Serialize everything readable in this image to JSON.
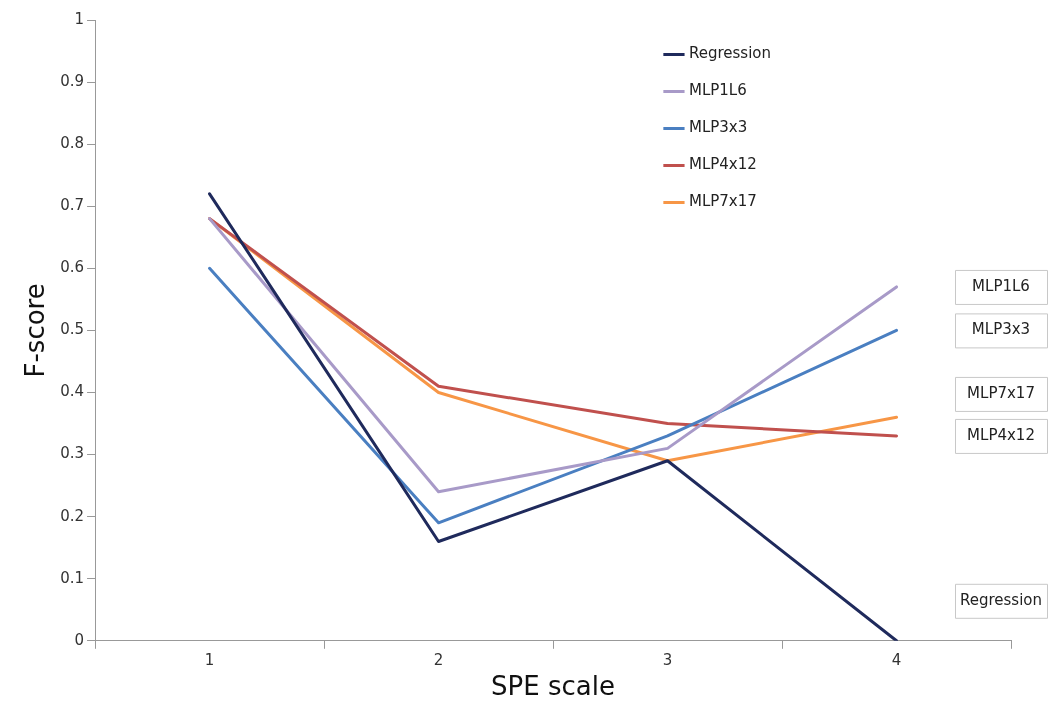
{
  "chart_data": {
    "type": "line",
    "xlabel": "SPE scale",
    "ylabel": "F-score",
    "categories": [
      "1",
      "2",
      "3",
      "4"
    ],
    "series": [
      {
        "name": "Regression",
        "color": "#1f2a5c",
        "values": [
          0.72,
          0.16,
          0.29,
          0
        ]
      },
      {
        "name": "MLP1L6",
        "color": "#a89ac8",
        "values": [
          0.68,
          0.24,
          0.31,
          0.57
        ]
      },
      {
        "name": "MLP3x3",
        "color": "#4a7fc1",
        "values": [
          0.6,
          0.19,
          0.33,
          0.5
        ]
      },
      {
        "name": "MLP4x12",
        "color": "#c0504d",
        "values": [
          0.68,
          0.41,
          0.35,
          0.33
        ]
      },
      {
        "name": "MLP7x17",
        "color": "#f79646",
        "values": [
          0.68,
          0.4,
          0.29,
          0.36
        ]
      }
    ],
    "ylim": [
      0,
      1
    ],
    "yticks": [
      0,
      0.1,
      0.2,
      0.3,
      0.4,
      0.5,
      0.6,
      0.7,
      0.8,
      0.9,
      1
    ],
    "grid": false,
    "legend": "top right",
    "marker": "none",
    "line_style": "solid"
  }
}
